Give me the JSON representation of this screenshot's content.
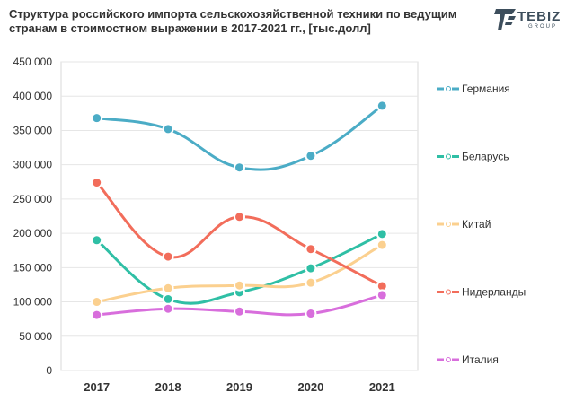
{
  "logo": {
    "word": "TEBIZ",
    "sub": "GROUP"
  },
  "chart_data": {
    "type": "line",
    "title": "Структура российского импорта сельскохозяйственной техники по ведущим странам в стоимостном выражении в 2017-2021 гг., [тыс.долл]",
    "categories": [
      "2017",
      "2018",
      "2019",
      "2020",
      "2021"
    ],
    "ylim": [
      0,
      450000
    ],
    "yticks": [
      0,
      50000,
      100000,
      150000,
      200000,
      250000,
      300000,
      350000,
      400000,
      450000
    ],
    "ytick_labels": [
      "0",
      "50 000",
      "100 000",
      "150 000",
      "200 000",
      "250 000",
      "300 000",
      "350 000",
      "400 000",
      "450 000"
    ],
    "grid": true,
    "legend_position": "right",
    "series": [
      {
        "name": "Германия",
        "color": "#4bacc6",
        "values": [
          368000,
          352000,
          296000,
          313000,
          386000
        ]
      },
      {
        "name": "Беларусь",
        "color": "#2fbfa5",
        "values": [
          190000,
          104000,
          114000,
          149000,
          199000
        ]
      },
      {
        "name": "Китай",
        "color": "#fbd08f",
        "values": [
          100000,
          120000,
          124000,
          128000,
          183000
        ]
      },
      {
        "name": "Нидерланды",
        "color": "#f26d5b",
        "values": [
          274000,
          166000,
          224000,
          177000,
          123000
        ]
      },
      {
        "name": "Италия",
        "color": "#d86edc",
        "values": [
          81000,
          90000,
          86000,
          83000,
          110000
        ]
      }
    ]
  }
}
